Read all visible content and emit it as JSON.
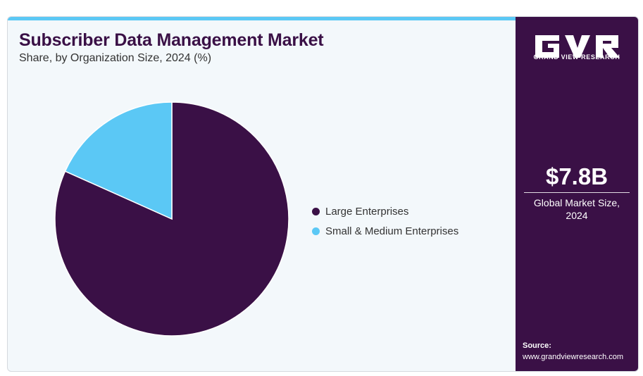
{
  "header": {
    "title": "Subscriber Data Management Market",
    "subtitle": "Share, by Organization Size, 2024 (%)"
  },
  "chart_data": {
    "type": "pie",
    "title": "Subscriber Data Management Market",
    "subtitle": "Share, by Organization Size, 2024 (%)",
    "categories": [
      "Large Enterprises",
      "Small & Medium Enterprises"
    ],
    "values": [
      81.7,
      18.3
    ],
    "colors": [
      "#3a1046",
      "#5bc8f5"
    ],
    "legend_position": "right"
  },
  "sidebar": {
    "logo_text": "GRAND VIEW RESEARCH",
    "stat_value": "$7.8B",
    "stat_label_line1": "Global Market Size,",
    "stat_label_line2": "2024",
    "source_label": "Source:",
    "source_url": "www.grandviewresearch.com"
  },
  "colors": {
    "brand_purple": "#3a1046",
    "accent_cyan": "#5bc8f5",
    "panel_background": "#f3f8fb"
  }
}
